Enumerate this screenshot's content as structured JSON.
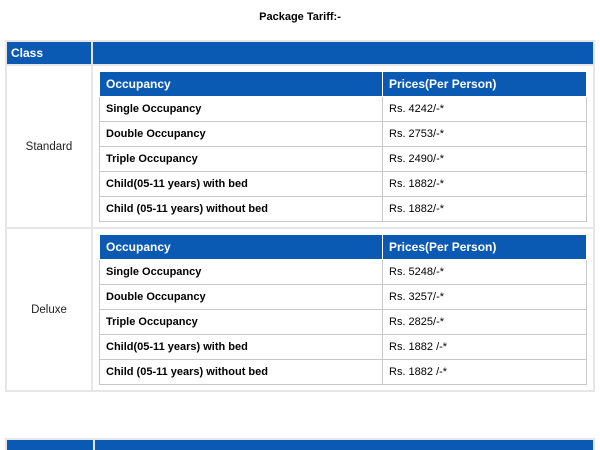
{
  "heading": "Package Tariff:-",
  "class_header": "Class",
  "occupancy_header": "Occupancy",
  "prices_header": "Prices(Per Person)",
  "classes": [
    {
      "name": "Standard",
      "rows": [
        {
          "occupancy": "Single Occupancy",
          "price": "Rs. 4242/-*"
        },
        {
          "occupancy": "Double Occupancy",
          "price": "Rs. 2753/-*"
        },
        {
          "occupancy": "Triple Occupancy",
          "price": "Rs. 2490/-*"
        },
        {
          "occupancy": "Child(05-11 years) with bed",
          "price": "Rs. 1882/-*"
        },
        {
          "occupancy": "Child (05-11 years) without bed",
          "price": "Rs. 1882/-*"
        }
      ]
    },
    {
      "name": "Deluxe",
      "rows": [
        {
          "occupancy": "Single Occupancy",
          "price": "Rs. 5248/-*"
        },
        {
          "occupancy": "Double Occupancy",
          "price": "Rs. 3257/-*"
        },
        {
          "occupancy": "Triple Occupancy",
          "price": "Rs. 2825/-*"
        },
        {
          "occupancy": "Child(05-11 years) with bed",
          "price": "Rs. 1882 /-*"
        },
        {
          "occupancy": "Child (05-11 years) without bed",
          "price": "Rs. 1882 /-*"
        }
      ]
    }
  ]
}
